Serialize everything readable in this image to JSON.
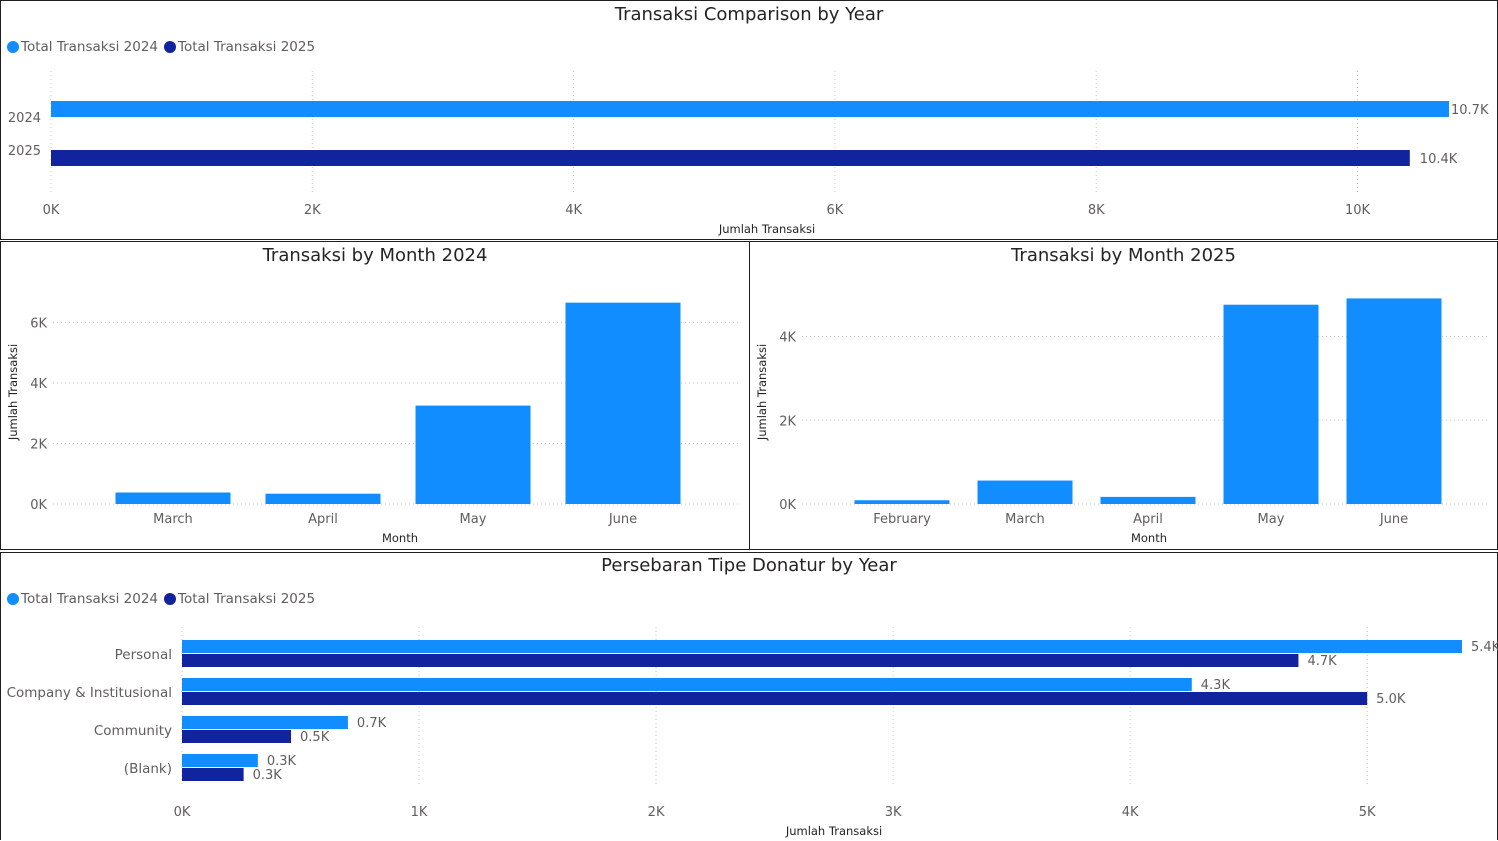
{
  "colors": {
    "y2024": "#118DFF",
    "y2025": "#12239E",
    "grid": "#c8c6c4",
    "axis_text": "#605e5c"
  },
  "legend": {
    "item_2024": "Total Transaksi 2024",
    "item_2025": "Total Transaksi 2025"
  },
  "chart_data": [
    {
      "type": "bar",
      "orientation": "horizontal",
      "title": "Transaksi Comparison by Year",
      "categories": [
        "2024",
        "2025"
      ],
      "values": [
        10700,
        10400
      ],
      "data_labels": [
        "10.7K",
        "10.4K"
      ],
      "xlabel": "Jumlah Transaksi",
      "ylabel": "",
      "xlim": [
        0,
        10700
      ],
      "xticks": [
        0,
        2000,
        4000,
        6000,
        8000,
        10000
      ],
      "xtick_labels": [
        "0K",
        "2K",
        "4K",
        "6K",
        "8K",
        "10K"
      ],
      "grid": true,
      "legend": "top-left"
    },
    {
      "type": "bar",
      "title": "Transaksi by Month 2024",
      "categories": [
        "March",
        "April",
        "May",
        "June"
      ],
      "values": [
        380,
        340,
        3250,
        6650
      ],
      "xlabel": "Month",
      "ylabel": "Jumlah Transaksi",
      "ylim": [
        0,
        7200
      ],
      "yticks": [
        0,
        2000,
        4000,
        6000
      ],
      "ytick_labels": [
        "0K",
        "2K",
        "4K",
        "6K"
      ],
      "grid": true
    },
    {
      "type": "bar",
      "title": "Transaksi by Month 2025",
      "categories": [
        "February",
        "March",
        "April",
        "May",
        "June"
      ],
      "values": [
        90,
        560,
        170,
        4760,
        4910
      ],
      "xlabel": "Month",
      "ylabel": "Jumlah Transaksi",
      "ylim": [
        0,
        5350
      ],
      "yticks": [
        0,
        2000,
        4000
      ],
      "ytick_labels": [
        "0K",
        "2K",
        "4K"
      ],
      "grid": true
    },
    {
      "type": "bar",
      "orientation": "horizontal",
      "title": "Persebaran Tipe Donatur by Year",
      "categories": [
        "Personal",
        "Company & Institusional",
        "Community",
        "(Blank)"
      ],
      "series": [
        {
          "name": "Total Transaksi 2024",
          "values": [
            5400,
            4260,
            700,
            320
          ],
          "data_labels": [
            "5.4K",
            "4.3K",
            "0.7K",
            "0.3K"
          ]
        },
        {
          "name": "Total Transaksi 2025",
          "values": [
            4710,
            5000,
            460,
            260
          ],
          "data_labels": [
            "4.7K",
            "5.0K",
            "0.5K",
            "0.3K"
          ]
        }
      ],
      "xlabel": "Jumlah Transaksi",
      "ylabel": "",
      "xlim": [
        0,
        5400
      ],
      "xticks": [
        0,
        1000,
        2000,
        3000,
        4000,
        5000
      ],
      "xtick_labels": [
        "0K",
        "1K",
        "2K",
        "3K",
        "4K",
        "5K"
      ],
      "grid": true,
      "legend": "top-left"
    }
  ]
}
